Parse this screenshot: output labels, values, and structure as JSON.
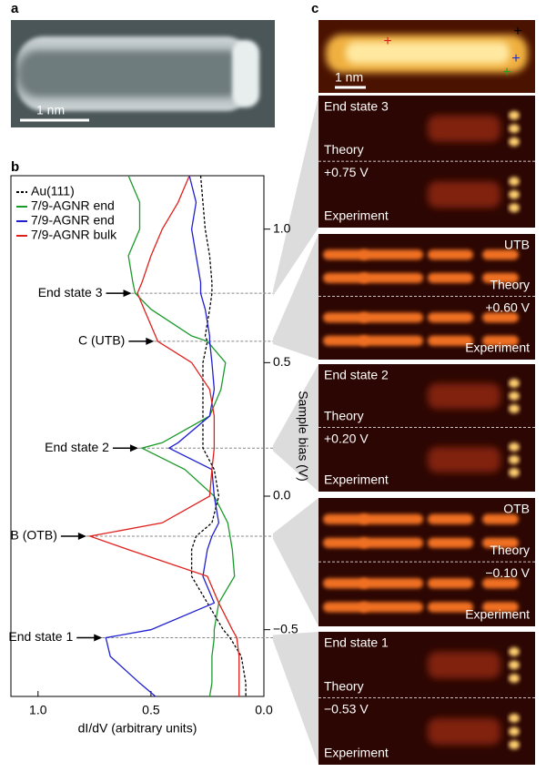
{
  "panels": {
    "a": {
      "label": "a",
      "scale_bar": "1 nm"
    },
    "b": {
      "label": "b"
    },
    "c": {
      "label": "c",
      "scale_bar": "1 nm",
      "images": [
        {
          "top": "End state 3",
          "bottom": "Theory"
        },
        {
          "top": "+0.75 V",
          "bottom": "Experiment"
        },
        {
          "top": "UTB",
          "bottom": "Theory"
        },
        {
          "top": "+0.60 V",
          "bottom": "Experiment"
        },
        {
          "top": "End state 2",
          "bottom": "Theory"
        },
        {
          "top": "+0.20 V",
          "bottom": "Experiment"
        },
        {
          "top": "OTB",
          "bottom": "Theory"
        },
        {
          "top": "−0.10 V",
          "bottom": "Experiment"
        },
        {
          "top": "End state 1",
          "bottom": "Theory"
        },
        {
          "top": "−0.53 V",
          "bottom": "Experiment"
        }
      ]
    }
  },
  "chart_data": {
    "type": "line",
    "orientation": "vertical",
    "xlabel": "dI/dV (arbitrary units)",
    "ylabel": "Sample bias (V)",
    "xlim": [
      1.12,
      0
    ],
    "ylim": [
      -0.75,
      1.2
    ],
    "xticks": [
      {
        "value": 1,
        "label": "1.0"
      },
      0.5,
      {
        "value": 0,
        "label": "0.0"
      }
    ],
    "yticks": [
      {
        "value": -0.5,
        "label": "−0.5"
      },
      {
        "value": 0,
        "label": "0.0"
      },
      0.5,
      {
        "value": 1,
        "label": "1.0"
      }
    ],
    "y": [
      1.2,
      1.1,
      1.0,
      0.9,
      0.8,
      0.76,
      0.7,
      0.6,
      0.58,
      0.5,
      0.4,
      0.3,
      0.2,
      0.18,
      0.1,
      0.0,
      -0.1,
      -0.15,
      -0.2,
      -0.3,
      -0.4,
      -0.5,
      -0.53,
      -0.6,
      -0.7,
      -0.75
    ],
    "series": [
      {
        "name": "Au(111)",
        "color": "#000000",
        "dashed": true,
        "values": [
          0.28,
          0.27,
          0.26,
          0.24,
          0.23,
          0.23,
          0.24,
          0.26,
          0.25,
          0.27,
          0.27,
          0.27,
          0.27,
          0.27,
          0.22,
          0.2,
          0.23,
          0.3,
          0.32,
          0.32,
          0.25,
          0.18,
          0.15,
          0.1,
          0.08,
          0.08
        ]
      },
      {
        "name": "7/9-AGNR end",
        "color": "#1a9a2a",
        "values": [
          0.6,
          0.55,
          0.55,
          0.6,
          0.58,
          0.57,
          0.5,
          0.32,
          0.25,
          0.17,
          0.19,
          0.24,
          0.45,
          0.54,
          0.35,
          0.22,
          0.16,
          0.15,
          0.14,
          0.13,
          0.2,
          0.22,
          0.22,
          0.23,
          0.23,
          0.24
        ]
      },
      {
        "name": "7/9-AGNR end",
        "color": "#1f1fd0",
        "values": [
          0.33,
          0.3,
          0.32,
          0.3,
          0.28,
          0.28,
          0.26,
          0.24,
          0.24,
          0.23,
          0.22,
          0.24,
          0.38,
          0.42,
          0.23,
          0.22,
          0.2,
          0.23,
          0.25,
          0.27,
          0.22,
          0.5,
          0.7,
          0.68,
          0.55,
          0.48
        ]
      },
      {
        "name": "7/9-AGNR bulk",
        "color": "#e0201c",
        "values": [
          0.33,
          0.38,
          0.45,
          0.5,
          0.54,
          0.56,
          0.53,
          0.48,
          0.47,
          0.32,
          0.24,
          0.22,
          0.22,
          0.22,
          0.23,
          0.24,
          0.45,
          0.77,
          0.6,
          0.25,
          0.2,
          0.14,
          0.12,
          0.11,
          0.11,
          0.11
        ]
      }
    ],
    "annotations": [
      {
        "text": "End state 3",
        "y": 0.76
      },
      {
        "text": "C (UTB)",
        "y": 0.58
      },
      {
        "text": "End state 2",
        "y": 0.18
      },
      {
        "text": "B (OTB)",
        "y": -0.15
      },
      {
        "text": "End state 1",
        "y": -0.53
      }
    ]
  }
}
